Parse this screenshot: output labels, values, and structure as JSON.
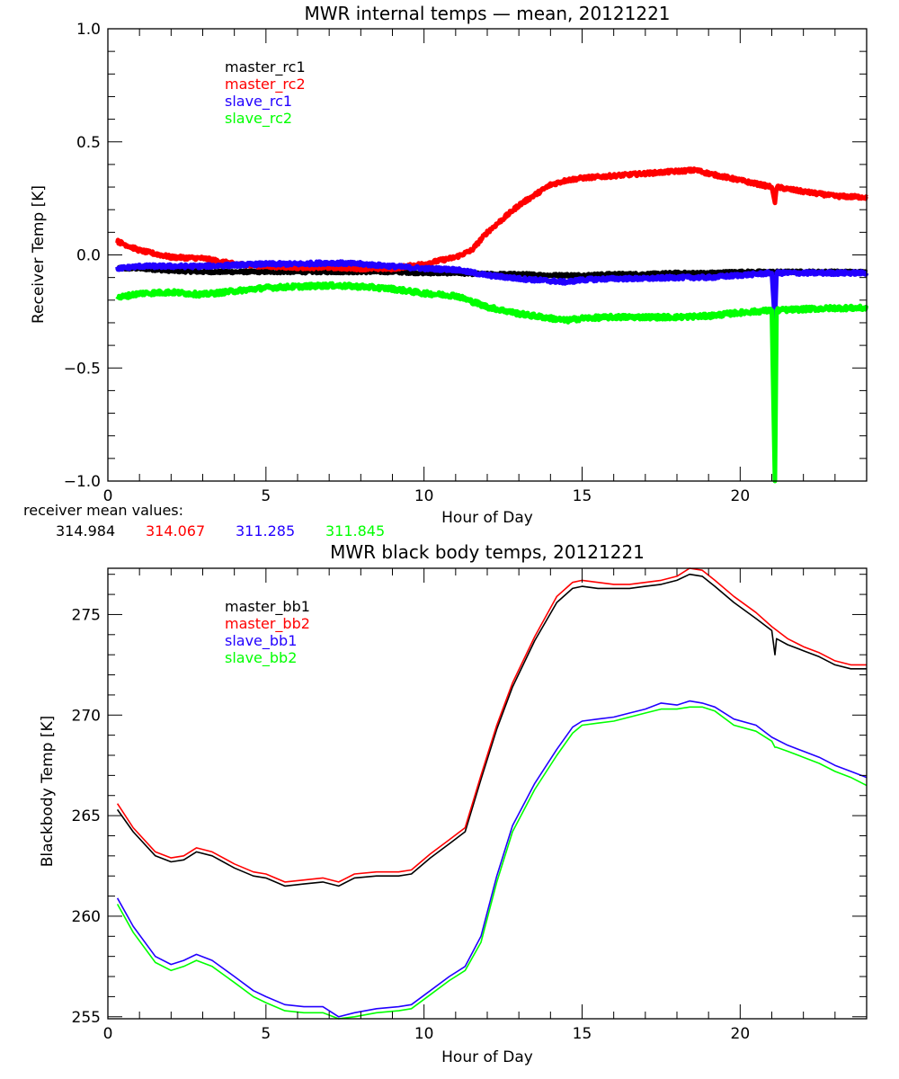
{
  "colors": {
    "black": "#000000",
    "red": "#ff0000",
    "blue": "#2200ff",
    "green": "#00ff00"
  },
  "chart_data": [
    {
      "type": "line",
      "title": "MWR internal temps — mean, 20121221",
      "xlabel": "Hour of Day",
      "ylabel": "Receiver Temp [K]",
      "xlim": [
        0,
        24
      ],
      "ylim": [
        -1.0,
        1.0
      ],
      "xticks": [
        0,
        5,
        10,
        15,
        20
      ],
      "xtick_labels": [
        "0",
        "5",
        "10",
        "15",
        "20"
      ],
      "yticks": [
        -1.0,
        -0.5,
        0.0,
        0.5,
        1.0
      ],
      "ytick_labels": [
        "−1.0",
        "−0.5",
        "0.0",
        "0.5",
        "1.0"
      ],
      "grid": false,
      "legend_position": "top-left",
      "footer": {
        "label": "receiver mean values:",
        "values": [
          "314.984",
          "314.067",
          "311.285",
          "311.845"
        ]
      },
      "series": [
        {
          "name": "master_rc1",
          "color": "#000000",
          "noise": 0.006,
          "x": [
            0.3,
            1,
            2,
            3,
            4,
            5,
            6,
            7,
            8,
            9,
            10,
            11,
            12,
            13,
            14,
            15,
            16,
            17,
            18,
            19,
            20,
            21,
            22,
            23,
            24
          ],
          "y": [
            -0.06,
            -0.06,
            -0.07,
            -0.075,
            -0.075,
            -0.075,
            -0.075,
            -0.075,
            -0.075,
            -0.075,
            -0.08,
            -0.08,
            -0.085,
            -0.085,
            -0.09,
            -0.09,
            -0.085,
            -0.085,
            -0.08,
            -0.08,
            -0.075,
            -0.075,
            -0.075,
            -0.075,
            -0.075
          ]
        },
        {
          "name": "master_rc2",
          "color": "#ff0000",
          "noise": 0.008,
          "x": [
            0.3,
            1,
            2,
            3,
            4,
            5,
            6,
            7,
            8,
            9,
            10,
            11,
            11.5,
            12,
            13,
            14,
            14.5,
            15,
            16,
            17,
            18,
            18.6,
            19,
            20,
            21,
            21.1,
            21.15,
            22,
            23,
            24
          ],
          "y": [
            0.06,
            0.02,
            -0.01,
            -0.015,
            -0.04,
            -0.05,
            -0.055,
            -0.055,
            -0.06,
            -0.06,
            -0.04,
            -0.01,
            0.02,
            0.1,
            0.22,
            0.31,
            0.33,
            0.34,
            0.35,
            0.36,
            0.37,
            0.375,
            0.36,
            0.33,
            0.3,
            0.23,
            0.3,
            0.28,
            0.26,
            0.255
          ]
        },
        {
          "name": "slave_rc1",
          "color": "#2200ff",
          "noise": 0.008,
          "x": [
            0.3,
            1,
            2,
            3,
            4,
            5,
            6,
            7,
            8,
            9,
            10,
            11,
            12,
            13,
            14,
            14.5,
            15,
            16,
            17,
            18,
            19,
            20,
            21,
            21.1,
            21.15,
            22,
            23,
            24
          ],
          "y": [
            -0.06,
            -0.05,
            -0.05,
            -0.05,
            -0.045,
            -0.04,
            -0.04,
            -0.035,
            -0.04,
            -0.05,
            -0.06,
            -0.065,
            -0.09,
            -0.105,
            -0.115,
            -0.12,
            -0.11,
            -0.105,
            -0.105,
            -0.1,
            -0.1,
            -0.09,
            -0.08,
            -0.3,
            -0.08,
            -0.08,
            -0.08,
            -0.08
          ]
        },
        {
          "name": "slave_rc2",
          "color": "#00ff00",
          "noise": 0.01,
          "x": [
            0.3,
            1,
            2,
            3,
            4,
            5,
            6,
            7,
            8,
            9,
            10,
            11,
            12,
            13,
            14,
            14.5,
            15,
            16,
            17,
            18,
            19,
            20,
            21,
            21.1,
            21.15,
            22,
            23,
            24
          ],
          "y": [
            -0.19,
            -0.17,
            -0.165,
            -0.175,
            -0.16,
            -0.145,
            -0.14,
            -0.135,
            -0.14,
            -0.15,
            -0.17,
            -0.18,
            -0.23,
            -0.26,
            -0.28,
            -0.29,
            -0.28,
            -0.275,
            -0.275,
            -0.275,
            -0.27,
            -0.255,
            -0.245,
            -1.0,
            -0.245,
            -0.24,
            -0.235,
            -0.235
          ]
        }
      ]
    },
    {
      "type": "line",
      "title": "MWR black body temps, 20121221",
      "xlabel": "Hour of Day",
      "ylabel": "Blackbody Temp [K]",
      "xlim": [
        0,
        24
      ],
      "ylim": [
        254.9,
        277.3
      ],
      "xticks": [
        0,
        5,
        10,
        15,
        20
      ],
      "xtick_labels": [
        "0",
        "5",
        "10",
        "15",
        "20"
      ],
      "yticks": [
        255,
        260,
        265,
        270,
        275
      ],
      "ytick_labels": [
        "255",
        "260",
        "265",
        "270",
        "275"
      ],
      "grid": false,
      "legend_position": "top-left",
      "series": [
        {
          "name": "master_bb1",
          "color": "#000000",
          "x": [
            0.3,
            0.8,
            1.5,
            2.0,
            2.4,
            2.8,
            3.3,
            4.0,
            4.6,
            5.0,
            5.6,
            6.2,
            6.8,
            7.3,
            7.8,
            8.5,
            9.2,
            9.6,
            10.2,
            10.8,
            11.3,
            11.8,
            12.3,
            12.8,
            13.5,
            14.2,
            14.7,
            15.0,
            15.5,
            16.0,
            16.5,
            17.0,
            17.5,
            18.0,
            18.4,
            18.8,
            19.2,
            19.8,
            20.5,
            21.0,
            21.1,
            21.15,
            21.5,
            22.0,
            22.5,
            23.0,
            23.5,
            24.0
          ],
          "y": [
            265.3,
            264.2,
            263.0,
            262.7,
            262.8,
            263.2,
            263.0,
            262.4,
            262.0,
            261.9,
            261.5,
            261.6,
            261.7,
            261.5,
            261.9,
            262.0,
            262.0,
            262.1,
            262.9,
            263.6,
            264.2,
            266.8,
            269.3,
            271.4,
            273.7,
            275.6,
            276.3,
            276.4,
            276.3,
            276.3,
            276.3,
            276.4,
            276.5,
            276.7,
            277.0,
            276.9,
            276.4,
            275.6,
            274.8,
            274.2,
            273.0,
            273.8,
            273.5,
            273.2,
            272.9,
            272.5,
            272.3,
            272.3
          ]
        },
        {
          "name": "master_bb2",
          "color": "#ff0000",
          "x": [
            0.3,
            0.8,
            1.5,
            2.0,
            2.4,
            2.8,
            3.3,
            4.0,
            4.6,
            5.0,
            5.6,
            6.2,
            6.8,
            7.3,
            7.8,
            8.5,
            9.2,
            9.6,
            10.2,
            10.8,
            11.3,
            11.8,
            12.3,
            12.8,
            13.5,
            14.2,
            14.7,
            15.0,
            15.5,
            16.0,
            16.5,
            17.0,
            17.5,
            18.0,
            18.4,
            18.8,
            19.2,
            19.8,
            20.5,
            21.0,
            21.5,
            22.0,
            22.5,
            23.0,
            23.5,
            24.0
          ],
          "y": [
            265.6,
            264.4,
            263.2,
            262.9,
            263.0,
            263.4,
            263.2,
            262.6,
            262.2,
            262.1,
            261.7,
            261.8,
            261.9,
            261.7,
            262.1,
            262.2,
            262.2,
            262.3,
            263.1,
            263.8,
            264.4,
            267.0,
            269.5,
            271.6,
            273.9,
            275.9,
            276.6,
            276.7,
            276.6,
            276.5,
            276.5,
            276.6,
            276.7,
            276.9,
            277.3,
            277.2,
            276.7,
            275.9,
            275.1,
            274.4,
            273.8,
            273.4,
            273.1,
            272.7,
            272.5,
            272.5
          ]
        },
        {
          "name": "slave_bb1",
          "color": "#2200ff",
          "x": [
            0.3,
            0.8,
            1.5,
            2.0,
            2.4,
            2.8,
            3.3,
            4.0,
            4.6,
            5.0,
            5.6,
            6.2,
            6.8,
            7.3,
            7.8,
            8.5,
            9.2,
            9.6,
            10.2,
            10.8,
            11.3,
            11.8,
            12.3,
            12.8,
            13.5,
            14.2,
            14.7,
            15.0,
            15.5,
            16.0,
            16.5,
            17.0,
            17.5,
            18.0,
            18.4,
            18.8,
            19.2,
            19.8,
            20.5,
            21.0,
            21.5,
            22.0,
            22.5,
            23.0,
            23.5,
            24.0
          ],
          "y": [
            260.9,
            259.5,
            258.0,
            257.6,
            257.8,
            258.1,
            257.8,
            257.0,
            256.3,
            256.0,
            255.6,
            255.5,
            255.5,
            255.0,
            255.2,
            255.4,
            255.5,
            255.6,
            256.3,
            257.0,
            257.5,
            259.0,
            262.0,
            264.5,
            266.6,
            268.3,
            269.4,
            269.7,
            269.8,
            269.9,
            270.1,
            270.3,
            270.6,
            270.5,
            270.7,
            270.6,
            270.4,
            269.8,
            269.5,
            268.9,
            268.5,
            268.2,
            267.9,
            267.5,
            267.2,
            266.9
          ]
        },
        {
          "name": "slave_bb2",
          "color": "#00ff00",
          "x": [
            0.3,
            0.8,
            1.5,
            2.0,
            2.4,
            2.8,
            3.3,
            4.0,
            4.6,
            5.0,
            5.6,
            6.2,
            6.8,
            7.3,
            7.8,
            8.5,
            9.2,
            9.6,
            10.2,
            10.8,
            11.3,
            11.8,
            12.3,
            12.8,
            13.5,
            14.2,
            14.7,
            15.0,
            15.5,
            16.0,
            16.5,
            17.0,
            17.5,
            18.0,
            18.4,
            18.8,
            19.2,
            19.8,
            20.5,
            21.0,
            21.1,
            21.15,
            21.5,
            22.0,
            22.5,
            23.0,
            23.5,
            24.0
          ],
          "y": [
            260.6,
            259.2,
            257.7,
            257.3,
            257.5,
            257.8,
            257.5,
            256.7,
            256.0,
            255.7,
            255.3,
            255.2,
            255.2,
            254.8,
            255.0,
            255.2,
            255.3,
            255.4,
            256.1,
            256.8,
            257.3,
            258.7,
            261.7,
            264.2,
            266.3,
            268.0,
            269.1,
            269.5,
            269.6,
            269.7,
            269.9,
            270.1,
            270.3,
            270.3,
            270.4,
            270.4,
            270.2,
            269.5,
            269.2,
            268.7,
            268.4,
            268.4,
            268.2,
            267.9,
            267.6,
            267.2,
            266.9,
            266.5
          ]
        }
      ]
    }
  ]
}
